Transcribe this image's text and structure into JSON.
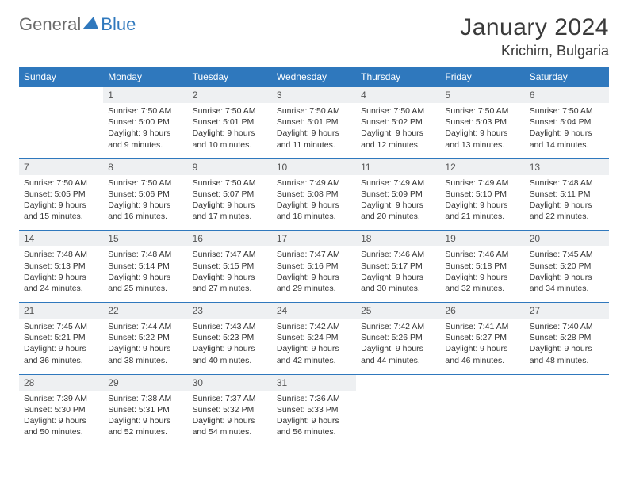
{
  "logo": {
    "text1": "General",
    "text2": "Blue",
    "text1_color": "#6b6b6b",
    "text2_color": "#2f78bd",
    "triangle_color": "#2f78bd"
  },
  "title": "January 2024",
  "location": "Krichim, Bulgaria",
  "colors": {
    "header_bg": "#2f78bd",
    "header_fg": "#ffffff",
    "daynum_bg": "#eef0f2",
    "daynum_fg": "#555555",
    "body_fg": "#333333",
    "rule": "#2f78bd"
  },
  "daysOfWeek": [
    "Sunday",
    "Monday",
    "Tuesday",
    "Wednesday",
    "Thursday",
    "Friday",
    "Saturday"
  ],
  "weeks": [
    [
      null,
      {
        "n": "1",
        "sr": "Sunrise: 7:50 AM",
        "ss": "Sunset: 5:00 PM",
        "dl": "Daylight: 9 hours and 9 minutes."
      },
      {
        "n": "2",
        "sr": "Sunrise: 7:50 AM",
        "ss": "Sunset: 5:01 PM",
        "dl": "Daylight: 9 hours and 10 minutes."
      },
      {
        "n": "3",
        "sr": "Sunrise: 7:50 AM",
        "ss": "Sunset: 5:01 PM",
        "dl": "Daylight: 9 hours and 11 minutes."
      },
      {
        "n": "4",
        "sr": "Sunrise: 7:50 AM",
        "ss": "Sunset: 5:02 PM",
        "dl": "Daylight: 9 hours and 12 minutes."
      },
      {
        "n": "5",
        "sr": "Sunrise: 7:50 AM",
        "ss": "Sunset: 5:03 PM",
        "dl": "Daylight: 9 hours and 13 minutes."
      },
      {
        "n": "6",
        "sr": "Sunrise: 7:50 AM",
        "ss": "Sunset: 5:04 PM",
        "dl": "Daylight: 9 hours and 14 minutes."
      }
    ],
    [
      {
        "n": "7",
        "sr": "Sunrise: 7:50 AM",
        "ss": "Sunset: 5:05 PM",
        "dl": "Daylight: 9 hours and 15 minutes."
      },
      {
        "n": "8",
        "sr": "Sunrise: 7:50 AM",
        "ss": "Sunset: 5:06 PM",
        "dl": "Daylight: 9 hours and 16 minutes."
      },
      {
        "n": "9",
        "sr": "Sunrise: 7:50 AM",
        "ss": "Sunset: 5:07 PM",
        "dl": "Daylight: 9 hours and 17 minutes."
      },
      {
        "n": "10",
        "sr": "Sunrise: 7:49 AM",
        "ss": "Sunset: 5:08 PM",
        "dl": "Daylight: 9 hours and 18 minutes."
      },
      {
        "n": "11",
        "sr": "Sunrise: 7:49 AM",
        "ss": "Sunset: 5:09 PM",
        "dl": "Daylight: 9 hours and 20 minutes."
      },
      {
        "n": "12",
        "sr": "Sunrise: 7:49 AM",
        "ss": "Sunset: 5:10 PM",
        "dl": "Daylight: 9 hours and 21 minutes."
      },
      {
        "n": "13",
        "sr": "Sunrise: 7:48 AM",
        "ss": "Sunset: 5:11 PM",
        "dl": "Daylight: 9 hours and 22 minutes."
      }
    ],
    [
      {
        "n": "14",
        "sr": "Sunrise: 7:48 AM",
        "ss": "Sunset: 5:13 PM",
        "dl": "Daylight: 9 hours and 24 minutes."
      },
      {
        "n": "15",
        "sr": "Sunrise: 7:48 AM",
        "ss": "Sunset: 5:14 PM",
        "dl": "Daylight: 9 hours and 25 minutes."
      },
      {
        "n": "16",
        "sr": "Sunrise: 7:47 AM",
        "ss": "Sunset: 5:15 PM",
        "dl": "Daylight: 9 hours and 27 minutes."
      },
      {
        "n": "17",
        "sr": "Sunrise: 7:47 AM",
        "ss": "Sunset: 5:16 PM",
        "dl": "Daylight: 9 hours and 29 minutes."
      },
      {
        "n": "18",
        "sr": "Sunrise: 7:46 AM",
        "ss": "Sunset: 5:17 PM",
        "dl": "Daylight: 9 hours and 30 minutes."
      },
      {
        "n": "19",
        "sr": "Sunrise: 7:46 AM",
        "ss": "Sunset: 5:18 PM",
        "dl": "Daylight: 9 hours and 32 minutes."
      },
      {
        "n": "20",
        "sr": "Sunrise: 7:45 AM",
        "ss": "Sunset: 5:20 PM",
        "dl": "Daylight: 9 hours and 34 minutes."
      }
    ],
    [
      {
        "n": "21",
        "sr": "Sunrise: 7:45 AM",
        "ss": "Sunset: 5:21 PM",
        "dl": "Daylight: 9 hours and 36 minutes."
      },
      {
        "n": "22",
        "sr": "Sunrise: 7:44 AM",
        "ss": "Sunset: 5:22 PM",
        "dl": "Daylight: 9 hours and 38 minutes."
      },
      {
        "n": "23",
        "sr": "Sunrise: 7:43 AM",
        "ss": "Sunset: 5:23 PM",
        "dl": "Daylight: 9 hours and 40 minutes."
      },
      {
        "n": "24",
        "sr": "Sunrise: 7:42 AM",
        "ss": "Sunset: 5:24 PM",
        "dl": "Daylight: 9 hours and 42 minutes."
      },
      {
        "n": "25",
        "sr": "Sunrise: 7:42 AM",
        "ss": "Sunset: 5:26 PM",
        "dl": "Daylight: 9 hours and 44 minutes."
      },
      {
        "n": "26",
        "sr": "Sunrise: 7:41 AM",
        "ss": "Sunset: 5:27 PM",
        "dl": "Daylight: 9 hours and 46 minutes."
      },
      {
        "n": "27",
        "sr": "Sunrise: 7:40 AM",
        "ss": "Sunset: 5:28 PM",
        "dl": "Daylight: 9 hours and 48 minutes."
      }
    ],
    [
      {
        "n": "28",
        "sr": "Sunrise: 7:39 AM",
        "ss": "Sunset: 5:30 PM",
        "dl": "Daylight: 9 hours and 50 minutes."
      },
      {
        "n": "29",
        "sr": "Sunrise: 7:38 AM",
        "ss": "Sunset: 5:31 PM",
        "dl": "Daylight: 9 hours and 52 minutes."
      },
      {
        "n": "30",
        "sr": "Sunrise: 7:37 AM",
        "ss": "Sunset: 5:32 PM",
        "dl": "Daylight: 9 hours and 54 minutes."
      },
      {
        "n": "31",
        "sr": "Sunrise: 7:36 AM",
        "ss": "Sunset: 5:33 PM",
        "dl": "Daylight: 9 hours and 56 minutes."
      },
      null,
      null,
      null
    ]
  ]
}
